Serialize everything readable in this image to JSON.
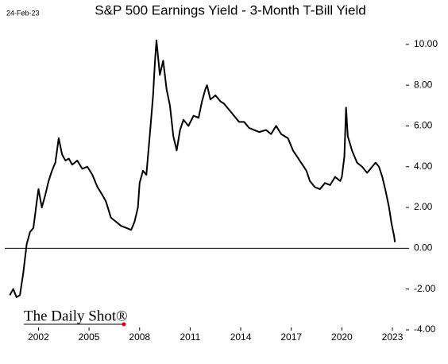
{
  "chart_data": {
    "type": "line",
    "title": "S&P 500 Earnings Yield - 3-Month T-Bill Yield",
    "date_label": "24-Feb-23",
    "source": "The Daily Shot®",
    "x": [
      2000.3,
      2000.5,
      2000.7,
      2000.9,
      2001.1,
      2001.3,
      2001.5,
      2001.7,
      2001.9,
      2002.0,
      2002.2,
      2002.4,
      2002.6,
      2002.8,
      2003.0,
      2003.2,
      2003.4,
      2003.6,
      2003.8,
      2004.0,
      2004.3,
      2004.6,
      2004.9,
      2005.2,
      2005.5,
      2005.8,
      2006.0,
      2006.3,
      2006.6,
      2006.9,
      2007.2,
      2007.5,
      2007.7,
      2007.9,
      2008.0,
      2008.2,
      2008.4,
      2008.6,
      2008.8,
      2008.9,
      2009.0,
      2009.2,
      2009.4,
      2009.6,
      2009.8,
      2010.0,
      2010.2,
      2010.4,
      2010.6,
      2010.9,
      2011.2,
      2011.5,
      2011.7,
      2011.9,
      2012.0,
      2012.2,
      2012.5,
      2012.8,
      2013.0,
      2013.3,
      2013.6,
      2013.9,
      2014.2,
      2014.5,
      2014.8,
      2015.1,
      2015.5,
      2015.8,
      2016.1,
      2016.4,
      2016.8,
      2017.1,
      2017.5,
      2017.9,
      2018.1,
      2018.4,
      2018.7,
      2019.0,
      2019.3,
      2019.6,
      2019.9,
      2020.0,
      2020.15,
      2020.25,
      2020.35,
      2020.6,
      2020.9,
      2021.2,
      2021.5,
      2021.8,
      2022.0,
      2022.2,
      2022.4,
      2022.6,
      2022.8,
      2022.95,
      2023.1,
      2023.15
    ],
    "series": [
      {
        "name": "S&P 500 Earnings Yield - 3-Month T-Bill Yield",
        "color": "#000000",
        "values": [
          -2.3,
          -2.0,
          -2.4,
          -2.3,
          -1.2,
          0.2,
          0.8,
          1.0,
          2.3,
          2.9,
          2.0,
          2.6,
          3.3,
          3.8,
          4.2,
          5.4,
          4.6,
          4.3,
          4.4,
          4.1,
          4.3,
          3.9,
          4.0,
          3.6,
          3.0,
          2.6,
          2.3,
          1.5,
          1.3,
          1.1,
          1.0,
          0.9,
          1.3,
          2.0,
          3.2,
          3.8,
          3.6,
          5.5,
          7.5,
          9.0,
          10.2,
          8.5,
          9.2,
          7.8,
          7.0,
          5.5,
          4.8,
          5.8,
          6.3,
          6.0,
          6.5,
          6.4,
          7.2,
          7.8,
          8.0,
          7.3,
          7.5,
          7.2,
          7.1,
          6.8,
          6.5,
          6.2,
          6.2,
          5.9,
          5.8,
          5.7,
          5.8,
          5.6,
          6.0,
          5.6,
          5.4,
          4.8,
          4.3,
          3.8,
          3.3,
          3.0,
          2.9,
          3.2,
          3.1,
          3.5,
          3.3,
          3.5,
          4.5,
          6.9,
          5.5,
          4.8,
          4.2,
          4.0,
          3.7,
          4.0,
          4.2,
          4.0,
          3.5,
          2.8,
          2.0,
          1.2,
          0.6,
          0.3
        ]
      }
    ],
    "xlim": [
      2000.0,
      2023.8
    ],
    "xticks": [
      2002,
      2005,
      2008,
      2011,
      2014,
      2017,
      2020,
      2023
    ],
    "ylim": [
      -4,
      10.5
    ],
    "yticks": [
      {
        "value": -4,
        "label": "-4.00"
      },
      {
        "value": -2,
        "label": "-2.00"
      },
      {
        "value": 0,
        "label": "0.00"
      },
      {
        "value": 2,
        "label": "2.00"
      },
      {
        "value": 4,
        "label": "4.00"
      },
      {
        "value": 6,
        "label": "6.00"
      },
      {
        "value": 8,
        "label": "8.00"
      },
      {
        "value": 10,
        "label": "10.00"
      }
    ],
    "y_axis_side": "right",
    "grid": false
  }
}
